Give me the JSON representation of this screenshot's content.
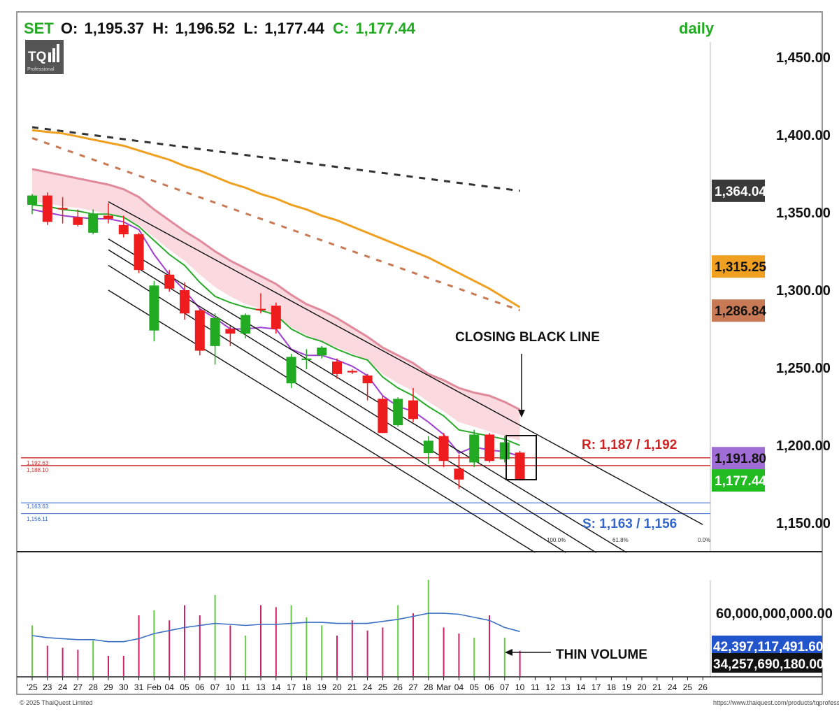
{
  "header": {
    "symbol": "SET",
    "open_label": "O:",
    "open": "1,195.37",
    "high_label": "H:",
    "high": "1,196.52",
    "low_label": "L:",
    "low": "1,177.44",
    "close_label": "C:",
    "close": "1,177.44",
    "timeframe": "daily"
  },
  "logo": {
    "text": "TQ",
    "sub": "Professional"
  },
  "annotations": {
    "closing_line": "CLOSING BLACK LINE",
    "thin_volume": "THIN VOLUME",
    "resistance": "R: 1,187 / 1,192",
    "support": "S: 1,163 / 1,156",
    "level_small": [
      "1,192.63",
      "1,188.10",
      "1,163.63",
      "1,156.11"
    ],
    "fib_labels": [
      "100.0%",
      "61.8%",
      "0.0%"
    ]
  },
  "footer": {
    "left": "© 2025 ThaiQuest Limited",
    "right": "https://www.thaiquest.com/products/tqprofessional/"
  },
  "chart_data": {
    "type": "candlestick",
    "price_axis": {
      "ticks": [
        "1,450.00",
        "1,400.00",
        "1,350.00",
        "1,300.00",
        "1,250.00",
        "1,200.00",
        "1,150.00"
      ],
      "range": [
        1129,
        1478
      ]
    },
    "price_tags": [
      {
        "label": "1,364.04",
        "value": 1364.04,
        "color": "#3a3a3a",
        "text_color": "#ffffff"
      },
      {
        "label": "1,315.25",
        "value": 1315.25,
        "color": "#f0a020",
        "text_color": "#111111"
      },
      {
        "label": "1,286.84",
        "value": 1286.84,
        "color": "#c77a55",
        "text_color": "#111111"
      },
      {
        "label": "1,191.80",
        "value": 1191.8,
        "color": "#a06cd5",
        "text_color": "#111111"
      },
      {
        "label": "1,177.44",
        "value": 1177.44,
        "color": "#22bb22",
        "text_color": "#ffffff"
      }
    ],
    "x_labels": [
      "'25",
      "23",
      "24",
      "27",
      "28",
      "29",
      "30",
      "31",
      "Feb",
      "04",
      "05",
      "06",
      "07",
      "10",
      "11",
      "13",
      "14",
      "17",
      "18",
      "19",
      "20",
      "21",
      "24",
      "25",
      "26",
      "27",
      "28",
      "Mar",
      "04",
      "05",
      "06",
      "07",
      "10",
      "11",
      "12",
      "13",
      "14",
      "17",
      "18",
      "19",
      "20",
      "21",
      "24",
      "25",
      "26"
    ],
    "candles": [
      {
        "o": 1355,
        "h": 1362,
        "l": 1349,
        "c": 1361
      },
      {
        "o": 1361,
        "h": 1363,
        "l": 1342,
        "c": 1344
      },
      {
        "o": 1353,
        "h": 1360,
        "l": 1343,
        "c": 1352
      },
      {
        "o": 1347,
        "h": 1352,
        "l": 1341,
        "c": 1342
      },
      {
        "o": 1337,
        "h": 1352,
        "l": 1336,
        "c": 1349
      },
      {
        "o": 1348,
        "h": 1356,
        "l": 1343,
        "c": 1346
      },
      {
        "o": 1342,
        "h": 1348,
        "l": 1334,
        "c": 1336
      },
      {
        "o": 1336,
        "h": 1337,
        "l": 1311,
        "c": 1313
      },
      {
        "o": 1274,
        "h": 1306,
        "l": 1267,
        "c": 1303
      },
      {
        "o": 1310,
        "h": 1313,
        "l": 1299,
        "c": 1301
      },
      {
        "o": 1300,
        "h": 1305,
        "l": 1281,
        "c": 1285
      },
      {
        "o": 1287,
        "h": 1288,
        "l": 1258,
        "c": 1261
      },
      {
        "o": 1264,
        "h": 1285,
        "l": 1252,
        "c": 1282
      },
      {
        "o": 1275,
        "h": 1277,
        "l": 1264,
        "c": 1272
      },
      {
        "o": 1272,
        "h": 1285,
        "l": 1269,
        "c": 1284
      },
      {
        "o": 1288,
        "h": 1298,
        "l": 1285,
        "c": 1287
      },
      {
        "o": 1290,
        "h": 1292,
        "l": 1272,
        "c": 1275
      },
      {
        "o": 1240,
        "h": 1259,
        "l": 1237,
        "c": 1257
      },
      {
        "o": 1255,
        "h": 1262,
        "l": 1249,
        "c": 1256
      },
      {
        "o": 1258,
        "h": 1264,
        "l": 1256,
        "c": 1263
      },
      {
        "o": 1254,
        "h": 1256,
        "l": 1243,
        "c": 1246
      },
      {
        "o": 1248,
        "h": 1249,
        "l": 1246,
        "c": 1247
      },
      {
        "o": 1245,
        "h": 1246,
        "l": 1229,
        "c": 1240
      },
      {
        "o": 1230,
        "h": 1232,
        "l": 1208,
        "c": 1208
      },
      {
        "o": 1213,
        "h": 1231,
        "l": 1212,
        "c": 1230
      },
      {
        "o": 1229,
        "h": 1237,
        "l": 1215,
        "c": 1217
      },
      {
        "o": 1195,
        "h": 1206,
        "l": 1188,
        "c": 1203
      },
      {
        "o": 1206,
        "h": 1208,
        "l": 1186,
        "c": 1190
      },
      {
        "o": 1185,
        "h": 1194,
        "l": 1172,
        "c": 1178
      },
      {
        "o": 1189,
        "h": 1210,
        "l": 1186,
        "c": 1207
      },
      {
        "o": 1207,
        "h": 1208,
        "l": 1189,
        "c": 1190
      },
      {
        "o": 1191,
        "h": 1206,
        "l": 1189,
        "c": 1202
      },
      {
        "o": 1195.37,
        "h": 1196.52,
        "l": 1177.44,
        "c": 1177.44
      }
    ],
    "overlays": [
      {
        "name": "",
        "color": "#a040d0",
        "values": [
          1352,
          1350,
          1348,
          1347,
          1346,
          1346,
          1344,
          1339,
          1323,
          1310,
          1300,
          1288,
          1282,
          1275,
          1275,
          1276,
          1275,
          1262,
          1258,
          1258,
          1255,
          1251,
          1245,
          1232,
          1225,
          1222,
          1215,
          1207,
          1195,
          1199,
          1197,
          1196,
          1193
        ]
      },
      {
        "name": "",
        "color": "#2aaa2a",
        "values": [
          1355,
          1354,
          1352,
          1351,
          1349,
          1349,
          1347,
          1341,
          1332,
          1323,
          1316,
          1305,
          1296,
          1292,
          1289,
          1287,
          1284,
          1275,
          1270,
          1267,
          1262,
          1258,
          1255,
          1244,
          1237,
          1232,
          1225,
          1219,
          1210,
          1208,
          1206,
          1204,
          1200
        ]
      },
      {
        "name": "",
        "color": "#e89aa8",
        "values": [
          1378,
          1376,
          1374,
          1372,
          1370,
          1368,
          1365,
          1360,
          1352,
          1345,
          1338,
          1332,
          1325,
          1319,
          1314,
          1309,
          1304,
          1297,
          1291,
          1287,
          1282,
          1276,
          1270,
          1263,
          1258,
          1253,
          1246,
          1242,
          1237,
          1234,
          1232,
          1228,
          1223
        ]
      }
    ],
    "band_lower": [
      1357,
      1356,
      1354,
      1353,
      1351,
      1349,
      1347,
      1342,
      1334,
      1326,
      1319,
      1310,
      1302,
      1296,
      1291,
      1288,
      1284,
      1276,
      1271,
      1267,
      1263,
      1259,
      1255,
      1246,
      1240,
      1235,
      1228,
      1222,
      1215,
      1212,
      1209,
      1206,
      1203
    ],
    "ma_dashed_black": {
      "from": [
        0,
        1405
      ],
      "to": [
        32,
        1364
      ]
    },
    "ma_orange": [
      1403,
      1402,
      1401,
      1399,
      1397,
      1395,
      1393,
      1390,
      1387,
      1384,
      1380,
      1377,
      1373,
      1369,
      1366,
      1362,
      1359,
      1355,
      1352,
      1348,
      1345,
      1341,
      1337,
      1333,
      1329,
      1325,
      1321,
      1316,
      1311,
      1306,
      1301,
      1295,
      1289
    ],
    "ma_dashed_brown": {
      "from": [
        0,
        1398
      ],
      "to": [
        32,
        1287
      ]
    },
    "levels": {
      "resistance": [
        1187,
        1192
      ],
      "support": [
        1163,
        1156
      ]
    },
    "channel_lines": [
      {
        "from": [
          5,
          1357
        ],
        "to": [
          44,
          1149
        ]
      },
      {
        "from": [
          5,
          1333
        ],
        "to": [
          39,
          1131
        ]
      },
      {
        "from": [
          5,
          1326
        ],
        "to": [
          37,
          1131
        ]
      },
      {
        "from": [
          5,
          1316
        ],
        "to": [
          35,
          1131
        ]
      },
      {
        "from": [
          5,
          1300
        ],
        "to": [
          33,
          1131
        ]
      }
    ],
    "volume_axis": {
      "ticks": [
        "60,000,000,000.00"
      ],
      "max": 90000000000
    },
    "volume_tags": [
      {
        "label": "42,397,117,491.60",
        "value": 42397117491.6,
        "color": "#2255cc",
        "text_color": "#ffffff"
      },
      {
        "label": "34,257,690,180.00",
        "value": 34257690180,
        "color": "#111111",
        "text_color": "#ffffff"
      }
    ],
    "volume": [
      50,
      30,
      28,
      26,
      35,
      20,
      20,
      60,
      65,
      55,
      70,
      60,
      80,
      50,
      40,
      70,
      68,
      70,
      58,
      50,
      40,
      55,
      45,
      48,
      70,
      62,
      95,
      48,
      42,
      38,
      60,
      38,
      25
    ],
    "volume_ma": [
      40,
      38,
      37,
      36,
      36,
      34,
      34,
      37,
      42,
      45,
      48,
      50,
      52,
      51,
      50,
      51,
      51,
      52,
      53,
      53,
      52,
      52,
      52,
      54,
      56,
      59,
      62,
      62,
      61,
      58,
      55,
      48,
      44
    ]
  }
}
